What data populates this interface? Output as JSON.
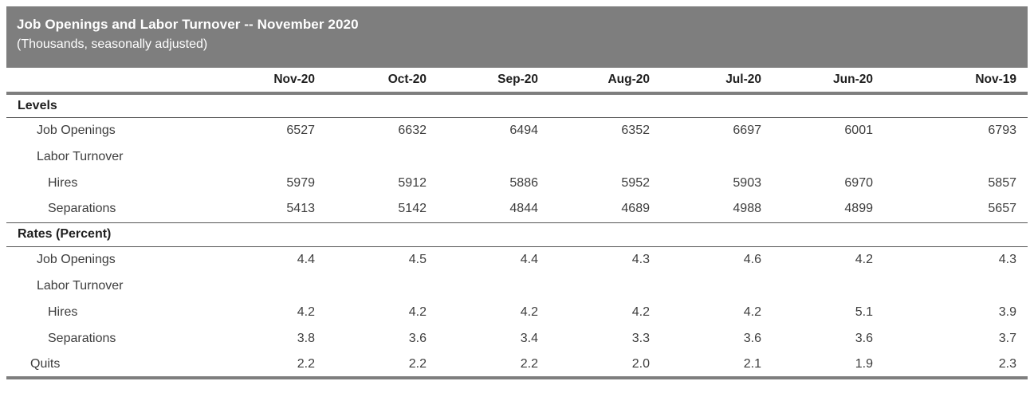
{
  "header": {
    "title": "Job Openings and Labor Turnover -- November 2020",
    "subtitle": "(Thousands, seasonally adjusted)"
  },
  "colors": {
    "titlebar_bg": "#7e7e7e",
    "titlebar_text": "#ffffff",
    "thick_rule": "#7e7e7e",
    "thin_rule": "#555555",
    "header_text": "#1f1f1f",
    "body_text": "#3d3d3d"
  },
  "chart_data": {
    "type": "table",
    "title": "Job Openings and Labor Turnover -- November 2020",
    "subtitle": "(Thousands, seasonally adjusted)",
    "columns": [
      "Nov-20",
      "Oct-20",
      "Sep-20",
      "Aug-20",
      "Jul-20",
      "Jun-20",
      "Nov-19"
    ],
    "sections": [
      {
        "label": "Levels",
        "rows": [
          {
            "label": "Job Openings",
            "indent": 1,
            "values": [
              "6527",
              "6632",
              "6494",
              "6352",
              "6697",
              "6001",
              "6793"
            ]
          },
          {
            "label": "Labor Turnover",
            "indent": 1,
            "values": [
              "",
              "",
              "",
              "",
              "",
              "",
              ""
            ]
          },
          {
            "label": "Hires",
            "indent": 2,
            "values": [
              "5979",
              "5912",
              "5886",
              "5952",
              "5903",
              "6970",
              "5857"
            ]
          },
          {
            "label": "Separations",
            "indent": 2,
            "values": [
              "5413",
              "5142",
              "4844",
              "4689",
              "4988",
              "4899",
              "5657"
            ]
          }
        ]
      },
      {
        "label": "Rates (Percent)",
        "rows": [
          {
            "label": "Job Openings",
            "indent": 1,
            "values": [
              "4.4",
              "4.5",
              "4.4",
              "4.3",
              "4.6",
              "4.2",
              "4.3"
            ]
          },
          {
            "label": "Labor Turnover",
            "indent": 1,
            "values": [
              "",
              "",
              "",
              "",
              "",
              "",
              ""
            ]
          },
          {
            "label": "Hires",
            "indent": 2,
            "values": [
              "4.2",
              "4.2",
              "4.2",
              "4.2",
              "4.2",
              "5.1",
              "3.9"
            ]
          },
          {
            "label": "Separations",
            "indent": 2,
            "values": [
              "3.8",
              "3.6",
              "3.4",
              "3.3",
              "3.6",
              "3.6",
              "3.7"
            ]
          },
          {
            "label": "Quits",
            "indent": 0,
            "values": [
              "2.2",
              "2.2",
              "2.2",
              "2.0",
              "2.1",
              "1.9",
              "2.3"
            ]
          }
        ]
      }
    ]
  }
}
